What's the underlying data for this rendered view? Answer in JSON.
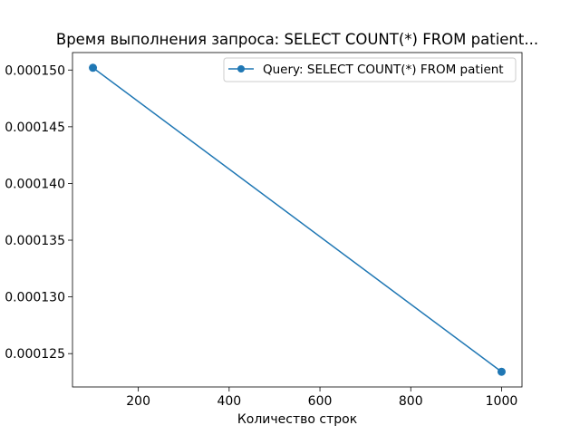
{
  "chart_data": {
    "type": "line",
    "title": "Время выполнения запроса: SELECT COUNT(*) FROM patient...",
    "xlabel": "Количество строк",
    "ylabel": "",
    "x": [
      100,
      1000
    ],
    "series": [
      {
        "name": "Query: SELECT COUNT(*) FROM patient",
        "values": [
          0.0001502,
          0.0001234
        ],
        "color": "#1f77b4",
        "marker": "circle"
      }
    ],
    "xlim": [
      55,
      1045
    ],
    "ylim": [
      0.00012206,
      0.00015154
    ],
    "x_ticks": [
      200,
      400,
      600,
      800,
      1000
    ],
    "x_tick_labels": [
      "200",
      "400",
      "600",
      "800",
      "1000"
    ],
    "y_ticks": [
      0.000125,
      0.00013,
      0.000135,
      0.00014,
      0.000145,
      0.00015
    ],
    "y_tick_labels": [
      "0.000125",
      "0.000130",
      "0.000135",
      "0.000140",
      "0.000145",
      "0.000150"
    ],
    "grid": false,
    "legend_position": "top-right"
  }
}
